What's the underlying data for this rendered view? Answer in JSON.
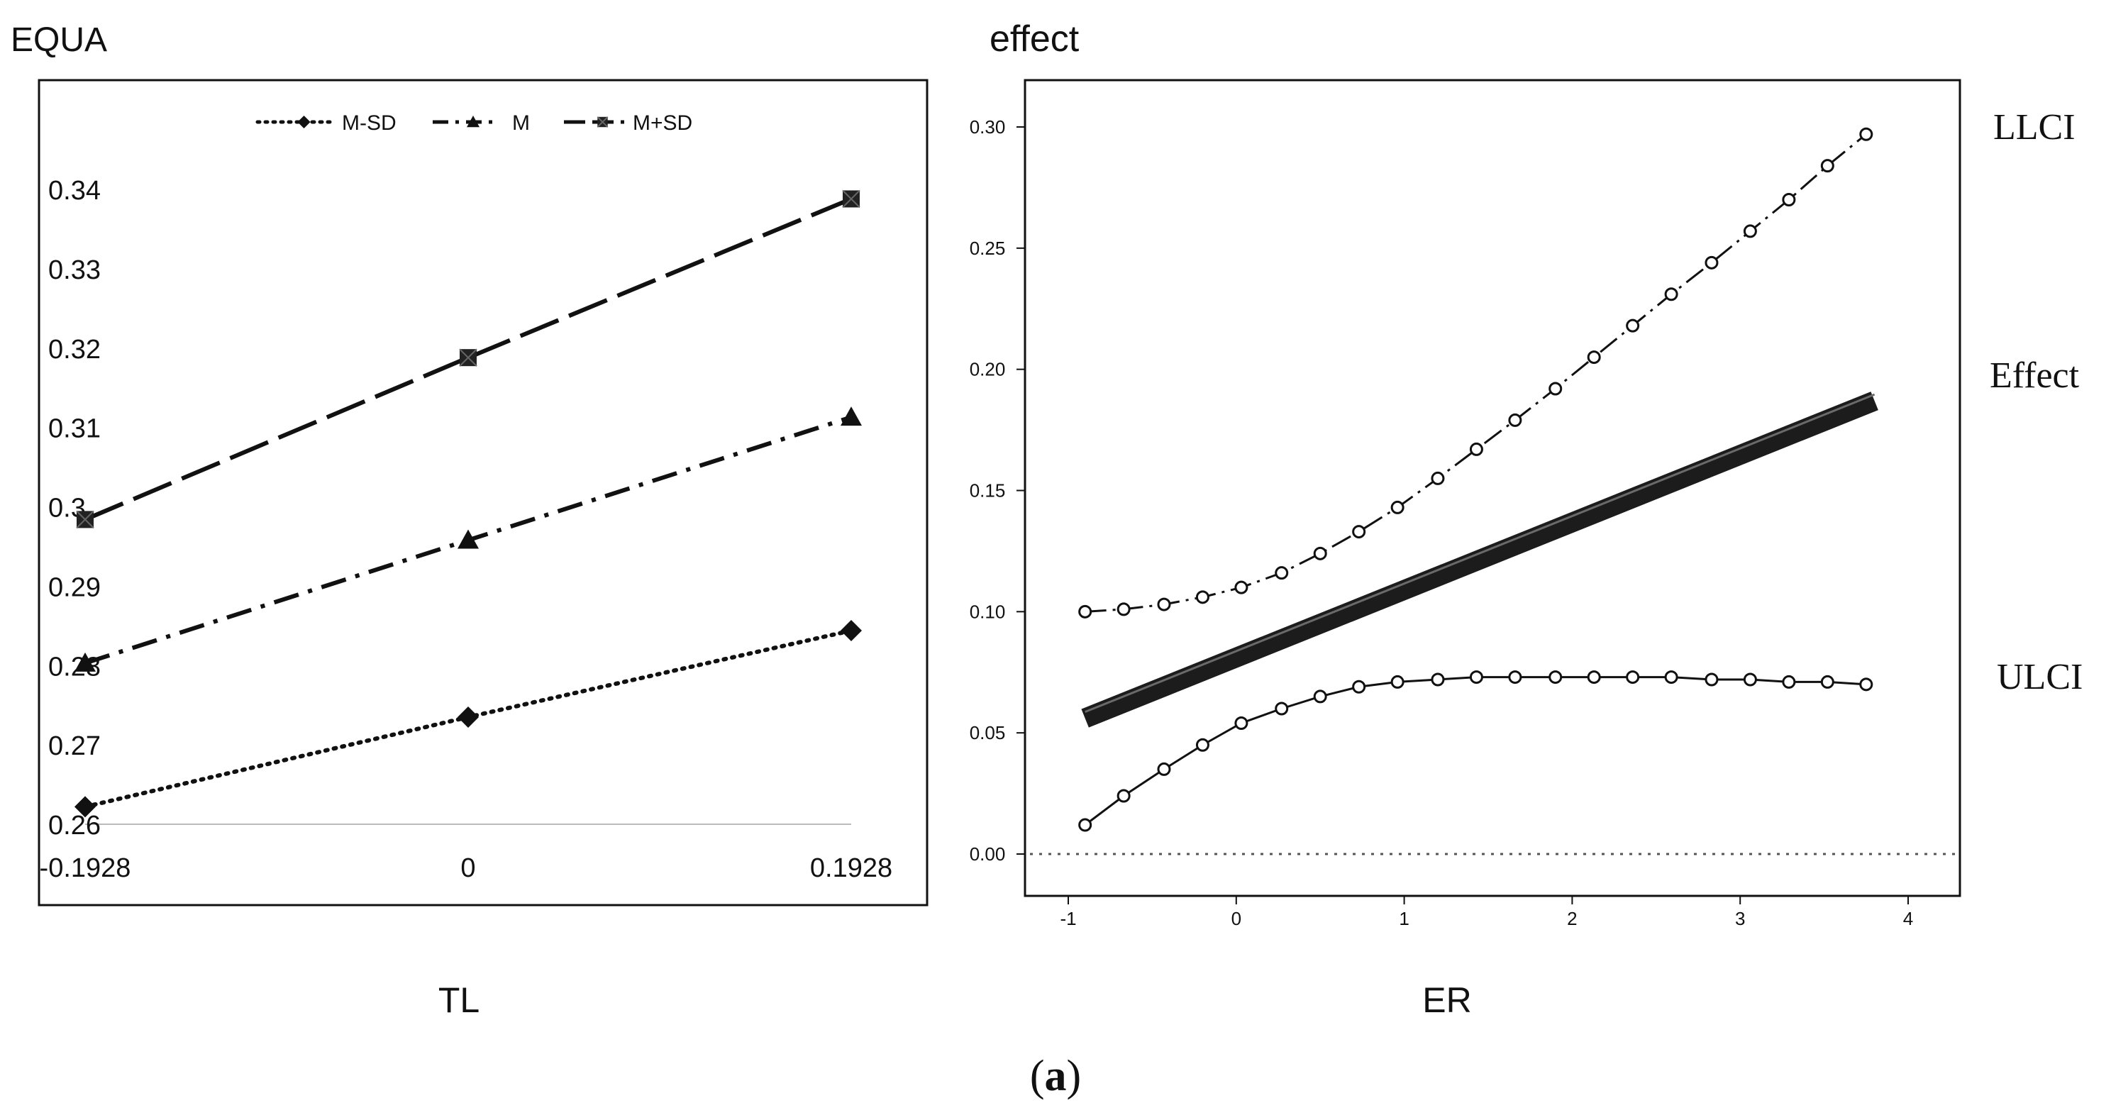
{
  "caption": "(a)",
  "caption_letter": "a",
  "chart_data": [
    {
      "type": "line",
      "ylabel": "EQUA",
      "xlabel": "TL",
      "categories": [
        "-0.1928",
        "0",
        "0.1928"
      ],
      "x": [
        -0.1928,
        0,
        0.1928
      ],
      "ylim": [
        0.26,
        0.34
      ],
      "yticks": [
        0.26,
        0.27,
        0.28,
        0.29,
        0.3,
        0.31,
        0.32,
        0.33,
        0.34
      ],
      "ytick_labels": [
        "0.26",
        "0.27",
        "0.28",
        "0.29",
        "0.3",
        "0.31",
        "0.32",
        "0.33",
        "0.34"
      ],
      "legend_position": "top",
      "series": [
        {
          "name": "M-SD",
          "marker": "diamond",
          "line": "dotted",
          "values": [
            0.2622,
            0.2735,
            0.2844
          ]
        },
        {
          "name": "M",
          "marker": "triangle",
          "line": "dash-dot",
          "values": [
            0.2803,
            0.2958,
            0.3113
          ]
        },
        {
          "name": "M+SD",
          "marker": "square",
          "line": "dashed",
          "values": [
            0.2984,
            0.3188,
            0.3388
          ]
        }
      ]
    },
    {
      "type": "line",
      "ylabel": "effect",
      "xlabel": "ER",
      "xlim": [
        -1.1,
        4.1
      ],
      "ylim": [
        -0.017,
        0.32
      ],
      "xticks": [
        -1,
        0,
        1,
        2,
        3,
        4
      ],
      "xtick_labels": [
        "-1",
        "0",
        "1",
        "2",
        "3",
        "4"
      ],
      "yticks": [
        0,
        0.05,
        0.1,
        0.15,
        0.2,
        0.25,
        0.3
      ],
      "ytick_labels": [
        "0.00",
        "0.05",
        "0.10",
        "0.15",
        "0.20",
        "0.25",
        "0.30"
      ],
      "reference_line": 0,
      "x": [
        -0.9,
        -0.67,
        -0.43,
        -0.2,
        0.03,
        0.27,
        0.5,
        0.73,
        0.96,
        1.2,
        1.43,
        1.66,
        1.9,
        2.13,
        2.36,
        2.59,
        2.83,
        3.06,
        3.29,
        3.52,
        3.75
      ],
      "series": [
        {
          "name": "LLCI",
          "label": "LLCI",
          "line": "dash-dot with circles",
          "values": [
            0.1,
            0.101,
            0.103,
            0.106,
            0.11,
            0.116,
            0.124,
            0.133,
            0.143,
            0.155,
            0.167,
            0.179,
            0.192,
            0.205,
            0.218,
            0.231,
            0.244,
            0.257,
            0.27,
            0.284,
            0.297
          ]
        },
        {
          "name": "Effect",
          "label": "Effect",
          "line": "thick solid",
          "x": [
            -0.9,
            3.8
          ],
          "values": [
            0.056,
            0.187
          ]
        },
        {
          "name": "ULCI",
          "label": "ULCI",
          "line": "solid with circles",
          "values": [
            0.012,
            0.024,
            0.035,
            0.045,
            0.054,
            0.06,
            0.065,
            0.069,
            0.071,
            0.072,
            0.073,
            0.073,
            0.073,
            0.073,
            0.073,
            0.073,
            0.072,
            0.072,
            0.071,
            0.071,
            0.07
          ]
        }
      ]
    }
  ]
}
